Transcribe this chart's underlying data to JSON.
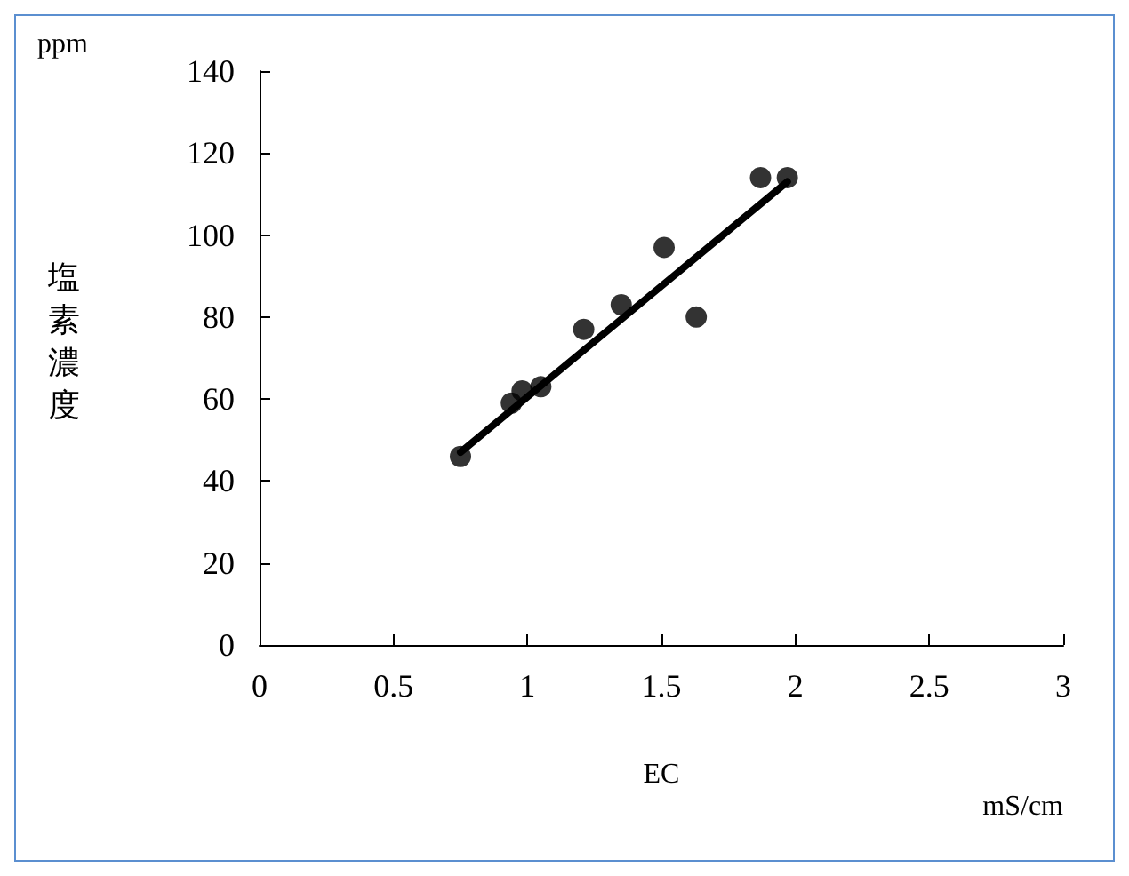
{
  "chart_data": {
    "type": "scatter",
    "xlabel": "EC",
    "ylabel": "塩素濃度",
    "annotations": [
      "ppm",
      "mS/cm"
    ],
    "series": [
      {
        "color": "#000000",
        "marker": "circle",
        "x": [
          0.75,
          0.94,
          0.98,
          1.05,
          1.21,
          1.35,
          1.51,
          1.63,
          1.87,
          1.97
        ],
        "values": [
          46,
          59,
          62,
          63,
          77,
          83,
          97,
          80,
          114,
          114
        ]
      },
      {
        "type": "line",
        "color": "#000000",
        "marker": "none",
        "line_style": "solid",
        "x": [
          0.75,
          1.97
        ],
        "values": [
          47,
          113
        ]
      }
    ],
    "xlim": [
      0,
      3
    ],
    "xticks": [
      0,
      0.5,
      1,
      1.5,
      2,
      2.5,
      3
    ],
    "ylim": [
      0,
      140
    ],
    "yticks": [
      0,
      20,
      40,
      60,
      80,
      100,
      120,
      140
    ],
    "grid": false
  }
}
